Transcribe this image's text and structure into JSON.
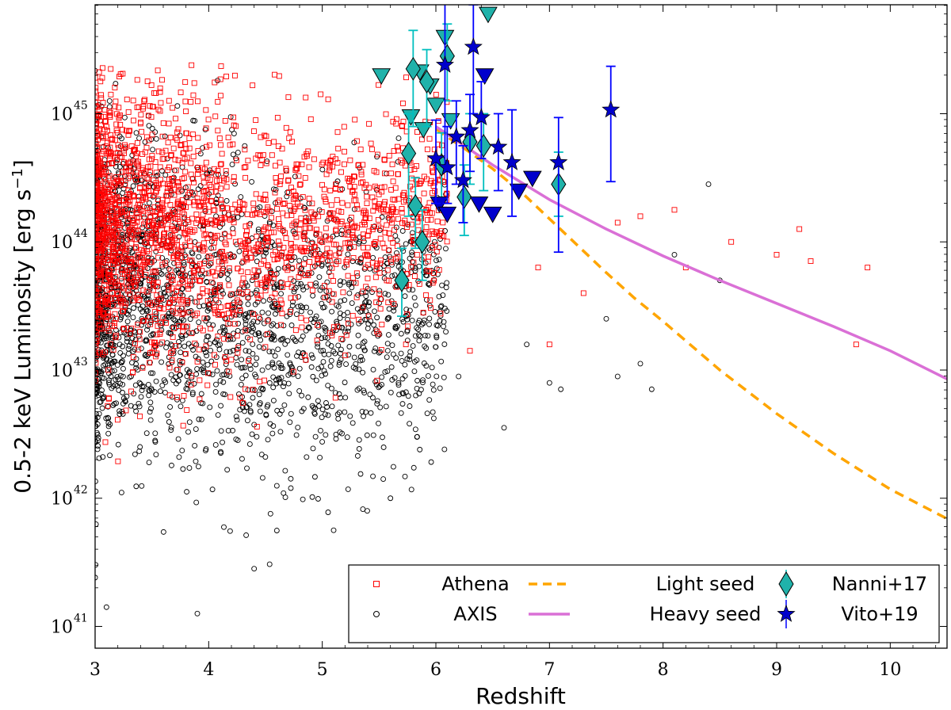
{
  "chart_data": {
    "type": "scatter",
    "title": "",
    "xlabel": "Redshift",
    "ylabel": "0.5-2 keV Luminosity [erg s⁻¹]",
    "ylabel_main": "0.5-2 keV Luminosity [erg s",
    "ylabel_sup": "−1",
    "ylabel_end": "]",
    "xlim": [
      3,
      10.5
    ],
    "ylim_log10": [
      40.83,
      45.85
    ],
    "yscale": "log",
    "xticks": [
      3,
      4,
      5,
      6,
      7,
      8,
      9,
      10
    ],
    "xtick_labels": [
      "3",
      "4",
      "5",
      "6",
      "7",
      "8",
      "9",
      "10"
    ],
    "yticks_log10": [
      41,
      42,
      43,
      44,
      45
    ],
    "ytick_labels": [
      {
        "base": "10",
        "exp": "41"
      },
      {
        "base": "10",
        "exp": "42"
      },
      {
        "base": "10",
        "exp": "43"
      },
      {
        "base": "10",
        "exp": "44"
      },
      {
        "base": "10",
        "exp": "45"
      }
    ],
    "grid": false,
    "legend_position": "bottom-right",
    "colors": {
      "athena": "#ff0000",
      "axis": "#000000",
      "light_seed": "#ffa500",
      "heavy_seed": "#da70d6",
      "nanni": "#20b2aa",
      "nanni_err": "#00bfbf",
      "vito": "#0000cc",
      "vito_err": "#0000ff"
    },
    "legend": [
      {
        "label": "Athena",
        "marker": "square",
        "color": "#ff0000"
      },
      {
        "label": "AXIS",
        "marker": "circle",
        "color": "#000000"
      },
      {
        "label": "Light seed",
        "marker": "dashed-line",
        "color": "#ffa500"
      },
      {
        "label": "Heavy seed",
        "marker": "solid-line",
        "color": "#da70d6"
      },
      {
        "label": "Nanni+17",
        "marker": "diamond",
        "color": "#20b2aa"
      },
      {
        "label": "Vito+19",
        "marker": "star",
        "color": "#0000cc"
      }
    ],
    "lines": [
      {
        "name": "Light seed",
        "style": "dashed",
        "x": [
          6.0,
          6.25,
          6.5,
          6.75,
          7.0,
          7.25,
          7.5,
          7.75,
          8.0,
          8.5,
          9.0,
          9.5,
          10.0,
          10.5
        ],
        "log10_y": [
          44.88,
          44.73,
          44.57,
          44.39,
          44.18,
          43.97,
          43.76,
          43.56,
          43.38,
          43.0,
          42.66,
          42.35,
          42.07,
          41.84
        ]
      },
      {
        "name": "Heavy seed",
        "style": "solid",
        "x": [
          6.0,
          6.5,
          7.0,
          7.5,
          8.0,
          8.5,
          9.0,
          9.5,
          10.0,
          10.5
        ],
        "log10_y": [
          44.9,
          44.6,
          44.33,
          44.1,
          43.89,
          43.7,
          43.52,
          43.34,
          43.15,
          42.93
        ]
      }
    ],
    "clouds": [
      {
        "name": "Athena",
        "marker": "square",
        "note": "dense Monte-Carlo population concentrated at z=3-5, log L = 42-45.4",
        "spine": [
          [
            3.0,
            44.2
          ],
          [
            3.5,
            44.1
          ],
          [
            4.0,
            44.0
          ],
          [
            4.5,
            44.05
          ],
          [
            5.0,
            44.1
          ],
          [
            5.5,
            44.2
          ],
          [
            6.0,
            44.3
          ]
        ],
        "scatter_dex": [
          0.75,
          0.72,
          0.7,
          0.65,
          0.6,
          0.55,
          0.5
        ],
        "extra_points": [
          [
            9.2,
            44.1
          ],
          [
            9.0,
            43.9
          ],
          [
            9.3,
            43.85
          ],
          [
            9.8,
            43.8
          ],
          [
            9.7,
            43.2
          ],
          [
            8.6,
            44.0
          ],
          [
            8.1,
            44.25
          ],
          [
            7.8,
            44.2
          ],
          [
            7.6,
            44.15
          ],
          [
            8.2,
            43.8
          ],
          [
            7.3,
            43.6
          ],
          [
            6.9,
            43.8
          ],
          [
            7.0,
            43.2
          ],
          [
            6.3,
            43.15
          ]
        ]
      },
      {
        "name": "AXIS",
        "marker": "circle",
        "note": "dense Monte-Carlo population concentrated at z=3-5, log L = 41.2-45.4",
        "spine": [
          [
            3.0,
            43.6
          ],
          [
            3.5,
            43.55
          ],
          [
            4.0,
            43.45
          ],
          [
            4.5,
            43.35
          ],
          [
            5.0,
            43.3
          ],
          [
            5.5,
            43.3
          ],
          [
            6.0,
            43.4
          ]
        ],
        "scatter_dex": [
          0.85,
          0.8,
          0.78,
          0.75,
          0.72,
          0.7,
          0.65
        ],
        "extra_points": [
          [
            8.4,
            44.45
          ],
          [
            8.1,
            43.9
          ],
          [
            8.5,
            43.7
          ],
          [
            7.9,
            42.85
          ],
          [
            7.8,
            43.05
          ],
          [
            7.6,
            42.95
          ],
          [
            7.5,
            43.4
          ],
          [
            7.1,
            42.85
          ],
          [
            7.0,
            42.9
          ],
          [
            6.8,
            43.2
          ],
          [
            6.6,
            42.55
          ],
          [
            6.2,
            42.95
          ],
          [
            5.6,
            42.0
          ],
          [
            5.1,
            41.75
          ],
          [
            4.4,
            41.45
          ],
          [
            3.9,
            41.1
          ],
          [
            3.1,
            41.15
          ]
        ]
      }
    ],
    "series": [
      {
        "name": "Nanni+17",
        "marker": "diamond",
        "points": [
          {
            "x": 5.7,
            "log10_y": 43.7,
            "lo": 43.42,
            "hi": 43.95
          },
          {
            "x": 5.76,
            "log10_y": 44.69,
            "lo": 44.2,
            "hi": 45.0
          },
          {
            "x": 5.8,
            "log10_y": 45.35,
            "lo": 44.9,
            "hi": 45.65
          },
          {
            "x": 5.82,
            "log10_y": 44.28,
            "lo": 43.95,
            "hi": 44.5
          },
          {
            "x": 5.88,
            "log10_y": 44.0,
            "lo": 43.7,
            "hi": 44.25
          },
          {
            "x": 5.92,
            "log10_y": 45.25,
            "lo": 44.9,
            "hi": 45.5
          },
          {
            "x": 6.05,
            "log10_y": 44.6,
            "lo": 44.3,
            "hi": 44.85
          },
          {
            "x": 6.1,
            "log10_y": 45.45,
            "lo": 45.1,
            "hi": 45.7
          },
          {
            "x": 6.25,
            "log10_y": 44.35,
            "lo": 44.05,
            "hi": 44.6
          },
          {
            "x": 6.3,
            "log10_y": 44.78,
            "lo": 44.45,
            "hi": 45.0
          },
          {
            "x": 6.42,
            "log10_y": 44.75,
            "lo": 44.4,
            "hi": 45.0
          },
          {
            "x": 7.08,
            "log10_y": 44.45,
            "lo": 44.2,
            "hi": 44.7
          }
        ],
        "upper_limits": [
          {
            "x": 5.52,
            "log10_y": 45.3
          },
          {
            "x": 5.78,
            "log10_y": 44.98
          },
          {
            "x": 5.86,
            "log10_y": 45.33
          },
          {
            "x": 5.89,
            "log10_y": 44.88
          },
          {
            "x": 5.95,
            "log10_y": 45.22
          },
          {
            "x": 6.0,
            "log10_y": 45.07
          },
          {
            "x": 6.08,
            "log10_y": 45.6
          },
          {
            "x": 6.13,
            "log10_y": 44.95
          },
          {
            "x": 6.46,
            "log10_y": 45.78
          }
        ]
      },
      {
        "name": "Vito+19",
        "marker": "star",
        "points": [
          {
            "x": 6.0,
            "log10_y": 44.65,
            "lo": 44.3,
            "hi": 44.95
          },
          {
            "x": 6.08,
            "log10_y": 45.38,
            "lo": 44.6,
            "hi": 45.9
          },
          {
            "x": 6.1,
            "log10_y": 44.58,
            "lo": 44.3,
            "hi": 44.9
          },
          {
            "x": 6.18,
            "log10_y": 44.82,
            "lo": 44.45,
            "hi": 45.1
          },
          {
            "x": 6.24,
            "log10_y": 44.48,
            "lo": 44.15,
            "hi": 44.75
          },
          {
            "x": 6.3,
            "log10_y": 44.87,
            "lo": 44.55,
            "hi": 45.15
          },
          {
            "x": 6.33,
            "log10_y": 45.52,
            "lo": 45.0,
            "hi": 45.85
          },
          {
            "x": 6.4,
            "log10_y": 44.97,
            "lo": 44.65,
            "hi": 45.25
          },
          {
            "x": 6.55,
            "log10_y": 44.74,
            "lo": 44.4,
            "hi": 45.0
          },
          {
            "x": 6.67,
            "log10_y": 44.62,
            "lo": 44.2,
            "hi": 45.03
          },
          {
            "x": 7.08,
            "log10_y": 44.62,
            "lo": 43.92,
            "hi": 44.97
          },
          {
            "x": 7.54,
            "log10_y": 45.03,
            "lo": 44.47,
            "hi": 45.37
          }
        ],
        "upper_limits": [
          {
            "x": 6.03,
            "log10_y": 44.3
          },
          {
            "x": 6.38,
            "log10_y": 44.3
          },
          {
            "x": 6.5,
            "log10_y": 44.22
          },
          {
            "x": 6.73,
            "log10_y": 44.4
          },
          {
            "x": 6.85,
            "log10_y": 44.5
          },
          {
            "x": 6.1,
            "log10_y": 44.22
          },
          {
            "x": 6.43,
            "log10_y": 45.3
          }
        ]
      }
    ]
  }
}
